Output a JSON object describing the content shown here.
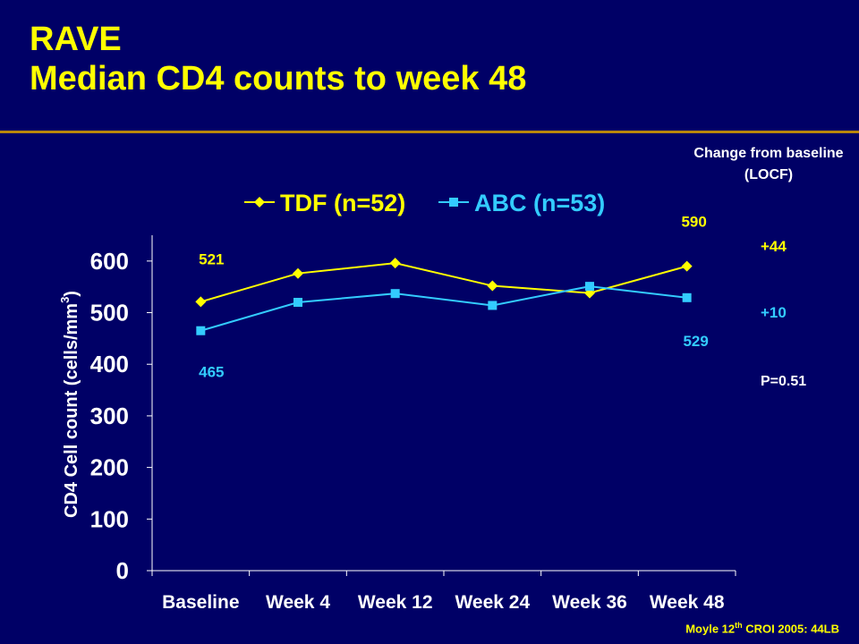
{
  "slide": {
    "title_line1": "RAVE",
    "title_line2": "Median CD4 counts to week 48",
    "change_note": "Change from baseline (LOCF)",
    "change_tdf": "+44",
    "change_abc": "+10",
    "p_value": "P=0.51",
    "citation_pre": "Moyle 12",
    "citation_sup": "th",
    "citation_post": " CROI 2005: 44LB"
  },
  "colors": {
    "background": "#000066",
    "title": "#FFFF00",
    "tdf": "#FFFF00",
    "abc": "#33CCFF",
    "axis": "#FFFFFF",
    "rule": "#B8860B"
  },
  "chart_data": {
    "type": "line",
    "categories": [
      "Baseline",
      "Week 4",
      "Week 12",
      "Week 24",
      "Week 36",
      "Week 48"
    ],
    "series": [
      {
        "name": "TDF (n=52)",
        "marker": "diamond",
        "values": [
          521,
          576,
          596,
          552,
          538,
          590
        ]
      },
      {
        "name": "ABC (n=53)",
        "marker": "square",
        "values": [
          465,
          520,
          537,
          514,
          551,
          529
        ]
      }
    ],
    "point_labels": [
      {
        "series": 0,
        "index": 0,
        "text": "521"
      },
      {
        "series": 0,
        "index": 5,
        "text": "590"
      },
      {
        "series": 1,
        "index": 0,
        "text": "465"
      },
      {
        "series": 1,
        "index": 5,
        "text": "529"
      }
    ],
    "ylabel": "CD4 Cell count (cells/mm3)",
    "ylabel_main": "CD4 Cell count (cells/mm",
    "ylabel_sup": "3",
    "ylabel_close": ")",
    "ylim": [
      0,
      650
    ],
    "yticks": [
      0,
      100,
      200,
      300,
      400,
      500,
      600
    ],
    "grid": false,
    "legend": "top"
  }
}
